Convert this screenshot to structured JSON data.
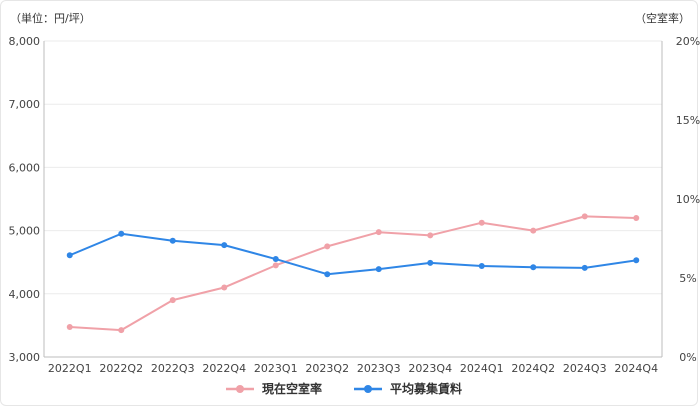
{
  "chart_data": {
    "type": "line",
    "left_axis_unit": "（単位：円/坪）",
    "right_axis_unit": "（空室率）",
    "categories": [
      "2022Q1",
      "2022Q2",
      "2022Q3",
      "2022Q4",
      "2023Q1",
      "2023Q2",
      "2023Q3",
      "2023Q4",
      "2024Q1",
      "2024Q2",
      "2024Q3",
      "2024Q4"
    ],
    "y_left": {
      "min": 3000,
      "max": 8000,
      "ticks": [
        3000,
        4000,
        5000,
        6000,
        7000,
        8000
      ],
      "tick_labels": [
        "3,000",
        "4,000",
        "5,000",
        "6,000",
        "7,000",
        "8,000"
      ]
    },
    "y_right": {
      "min": 0,
      "max": 20,
      "ticks": [
        0,
        5,
        10,
        15,
        20
      ],
      "tick_labels": [
        "0%",
        "5%",
        "10%",
        "15%",
        "20%"
      ]
    },
    "grid": true,
    "legend_position": "bottom",
    "series": [
      {
        "name": "現在空室率",
        "axis": "right",
        "color": "#f0a1a8",
        "values": [
          1.9,
          1.7,
          3.6,
          4.4,
          5.8,
          7.0,
          7.9,
          7.7,
          8.5,
          8.0,
          8.9,
          8.8
        ]
      },
      {
        "name": "平均募集賃料",
        "axis": "left",
        "color": "#2f86e6",
        "values": [
          4610,
          4950,
          4840,
          4770,
          4550,
          4310,
          4390,
          4490,
          4440,
          4420,
          4410,
          4530
        ]
      }
    ]
  }
}
